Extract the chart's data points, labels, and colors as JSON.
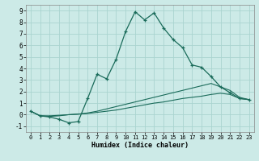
{
  "title": "",
  "xlabel": "Humidex (Indice chaleur)",
  "background_color": "#cceae7",
  "grid_color": "#aad4d0",
  "line_color": "#1a6b5a",
  "xlim": [
    -0.5,
    23.5
  ],
  "ylim": [
    -1.5,
    9.5
  ],
  "xticks": [
    0,
    1,
    2,
    3,
    4,
    5,
    6,
    7,
    8,
    9,
    10,
    11,
    12,
    13,
    14,
    15,
    16,
    17,
    18,
    19,
    20,
    21,
    22,
    23
  ],
  "yticks": [
    -1,
    0,
    1,
    2,
    3,
    4,
    5,
    6,
    7,
    8,
    9
  ],
  "series1": [
    [
      0,
      0.3
    ],
    [
      1,
      -0.1
    ],
    [
      2,
      -0.2
    ],
    [
      3,
      -0.4
    ],
    [
      4,
      -0.7
    ],
    [
      5,
      -0.6
    ],
    [
      6,
      1.4
    ],
    [
      7,
      3.5
    ],
    [
      8,
      3.1
    ],
    [
      9,
      4.8
    ],
    [
      10,
      7.2
    ],
    [
      11,
      8.9
    ],
    [
      12,
      8.2
    ],
    [
      13,
      8.8
    ],
    [
      14,
      7.5
    ],
    [
      15,
      6.5
    ],
    [
      16,
      5.8
    ],
    [
      17,
      4.3
    ],
    [
      18,
      4.1
    ],
    [
      19,
      3.3
    ],
    [
      20,
      2.4
    ],
    [
      21,
      1.9
    ],
    [
      22,
      1.4
    ],
    [
      23,
      1.3
    ]
  ],
  "series2": [
    [
      0,
      0.3
    ],
    [
      1,
      -0.1
    ],
    [
      2,
      -0.15
    ],
    [
      3,
      -0.1
    ],
    [
      4,
      0.0
    ],
    [
      5,
      0.05
    ],
    [
      6,
      0.15
    ],
    [
      7,
      0.3
    ],
    [
      8,
      0.5
    ],
    [
      9,
      0.7
    ],
    [
      10,
      0.9
    ],
    [
      11,
      1.1
    ],
    [
      12,
      1.3
    ],
    [
      13,
      1.5
    ],
    [
      14,
      1.7
    ],
    [
      15,
      1.9
    ],
    [
      16,
      2.1
    ],
    [
      17,
      2.3
    ],
    [
      18,
      2.5
    ],
    [
      19,
      2.7
    ],
    [
      20,
      2.4
    ],
    [
      21,
      2.1
    ],
    [
      22,
      1.5
    ],
    [
      23,
      1.3
    ]
  ],
  "series3": [
    [
      0,
      0.3
    ],
    [
      1,
      -0.1
    ],
    [
      2,
      -0.1
    ],
    [
      3,
      -0.05
    ],
    [
      4,
      0.0
    ],
    [
      5,
      0.05
    ],
    [
      6,
      0.1
    ],
    [
      7,
      0.2
    ],
    [
      8,
      0.3
    ],
    [
      9,
      0.4
    ],
    [
      10,
      0.55
    ],
    [
      11,
      0.7
    ],
    [
      12,
      0.85
    ],
    [
      13,
      1.0
    ],
    [
      14,
      1.1
    ],
    [
      15,
      1.25
    ],
    [
      16,
      1.4
    ],
    [
      17,
      1.5
    ],
    [
      18,
      1.6
    ],
    [
      19,
      1.75
    ],
    [
      20,
      1.85
    ],
    [
      21,
      1.75
    ],
    [
      22,
      1.4
    ],
    [
      23,
      1.3
    ]
  ]
}
